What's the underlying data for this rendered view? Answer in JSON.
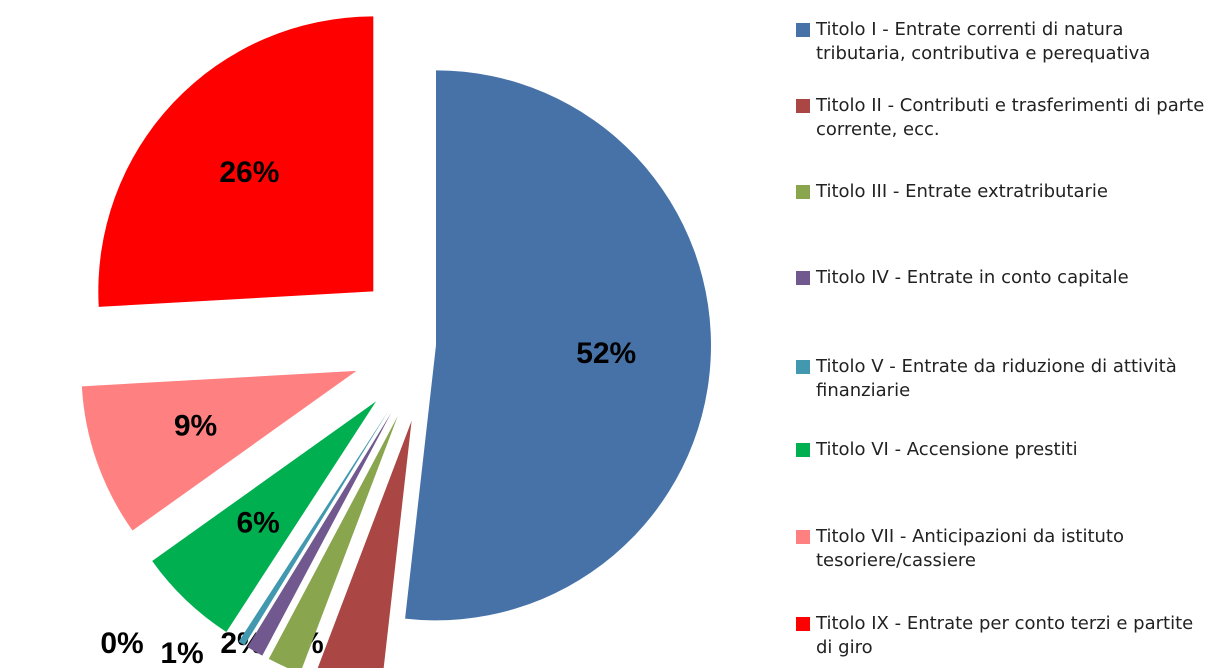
{
  "chart_data": {
    "type": "pie",
    "categories": [
      "Titolo I - Entrate correnti di natura tributaria, contributiva e perequativa",
      "Titolo II - Contributi e trasferimenti di parte corrente, ecc.",
      "Titolo III - Entrate extratributarie",
      "Titolo IV - Entrate in conto capitale",
      "Titolo V - Entrate da riduzione di attività finanziarie",
      "Titolo VI - Accensione prestiti",
      "Titolo VII - Anticipazioni da istituto tesoriere/cassiere",
      "Titolo IX - Entrate per conto terzi e partite di giro"
    ],
    "values": [
      52,
      4,
      2,
      1,
      0.4,
      6,
      9,
      26
    ],
    "value_labels": [
      "52%",
      "4%",
      "2%",
      "1%",
      "0%",
      "6%",
      "9%",
      "26%"
    ],
    "colors": [
      "#4672a8",
      "#aa4643",
      "#89a54e",
      "#71588f",
      "#4198af",
      "#00b050",
      "#ff8080",
      "#ff0000"
    ],
    "legend": "right"
  }
}
